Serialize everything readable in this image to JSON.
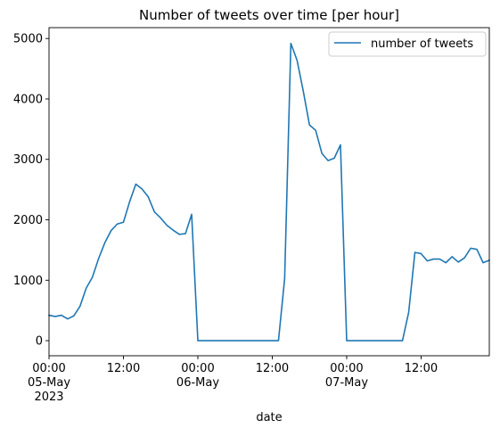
{
  "chart_data": {
    "type": "line",
    "title": "Number of tweets over time [per hour]",
    "xlabel": "date",
    "ylabel": "",
    "ylim": [
      -250,
      5180
    ],
    "xlim": [
      "2023-05-05 00:00",
      "2023-05-07 23:00"
    ],
    "grid": false,
    "legend_position": "top-right",
    "line_color": "#1f77b4",
    "y_ticks": [
      0,
      1000,
      2000,
      3000,
      4000,
      5000
    ],
    "y_tick_labels": [
      "0",
      "1000",
      "2000",
      "3000",
      "4000",
      "5000"
    ],
    "x_ticks": [
      {
        "x": "2023-05-05 00:00",
        "lines": [
          "00:00",
          "05-May",
          "2023"
        ]
      },
      {
        "x": "2023-05-05 12:00",
        "lines": [
          "12:00"
        ]
      },
      {
        "x": "2023-05-06 00:00",
        "lines": [
          "00:00",
          "06-May"
        ]
      },
      {
        "x": "2023-05-06 12:00",
        "lines": [
          "12:00"
        ]
      },
      {
        "x": "2023-05-07 00:00",
        "lines": [
          "00:00",
          "07-May"
        ]
      },
      {
        "x": "2023-05-07 12:00",
        "lines": [
          "12:00"
        ]
      }
    ],
    "series": [
      {
        "name": "number of tweets",
        "color": "#1f77b4",
        "x": [
          "2023-05-05 00:00",
          "2023-05-05 01:00",
          "2023-05-05 02:00",
          "2023-05-05 03:00",
          "2023-05-05 04:00",
          "2023-05-05 05:00",
          "2023-05-05 06:00",
          "2023-05-05 07:00",
          "2023-05-05 08:00",
          "2023-05-05 09:00",
          "2023-05-05 10:00",
          "2023-05-05 11:00",
          "2023-05-05 12:00",
          "2023-05-05 13:00",
          "2023-05-05 14:00",
          "2023-05-05 15:00",
          "2023-05-05 16:00",
          "2023-05-05 17:00",
          "2023-05-05 18:00",
          "2023-05-05 19:00",
          "2023-05-05 20:00",
          "2023-05-05 21:00",
          "2023-05-05 22:00",
          "2023-05-05 23:00",
          "2023-05-06 00:00",
          "2023-05-06 01:00",
          "2023-05-06 02:00",
          "2023-05-06 03:00",
          "2023-05-06 04:00",
          "2023-05-06 05:00",
          "2023-05-06 06:00",
          "2023-05-06 07:00",
          "2023-05-06 08:00",
          "2023-05-06 09:00",
          "2023-05-06 10:00",
          "2023-05-06 11:00",
          "2023-05-06 12:00",
          "2023-05-06 13:00",
          "2023-05-06 14:00",
          "2023-05-06 15:00",
          "2023-05-06 16:00",
          "2023-05-06 17:00",
          "2023-05-06 18:00",
          "2023-05-06 19:00",
          "2023-05-06 20:00",
          "2023-05-06 21:00",
          "2023-05-06 22:00",
          "2023-05-06 23:00",
          "2023-05-07 00:00",
          "2023-05-07 01:00",
          "2023-05-07 02:00",
          "2023-05-07 03:00",
          "2023-05-07 04:00",
          "2023-05-07 05:00",
          "2023-05-07 06:00",
          "2023-05-07 07:00",
          "2023-05-07 08:00",
          "2023-05-07 09:00",
          "2023-05-07 10:00",
          "2023-05-07 11:00",
          "2023-05-07 12:00",
          "2023-05-07 13:00",
          "2023-05-07 14:00",
          "2023-05-07 15:00",
          "2023-05-07 16:00",
          "2023-05-07 17:00",
          "2023-05-07 18:00",
          "2023-05-07 19:00",
          "2023-05-07 20:00",
          "2023-05-07 21:00",
          "2023-05-07 22:00",
          "2023-05-07 23:00"
        ],
        "values": [
          420,
          400,
          420,
          360,
          410,
          570,
          870,
          1050,
          1360,
          1620,
          1820,
          1930,
          1960,
          2300,
          2590,
          2510,
          2380,
          2130,
          2030,
          1910,
          1830,
          1760,
          1770,
          2090,
          0,
          0,
          0,
          0,
          0,
          0,
          0,
          0,
          0,
          0,
          0,
          0,
          0,
          0,
          1030,
          4920,
          4640,
          4130,
          3570,
          3480,
          3100,
          2980,
          3020,
          3240,
          0,
          0,
          0,
          0,
          0,
          0,
          0,
          0,
          0,
          0,
          470,
          1460,
          1440,
          1320,
          1350,
          1350,
          1290,
          1390,
          1300,
          1370,
          1530,
          1510,
          1290,
          1330
        ]
      }
    ]
  }
}
